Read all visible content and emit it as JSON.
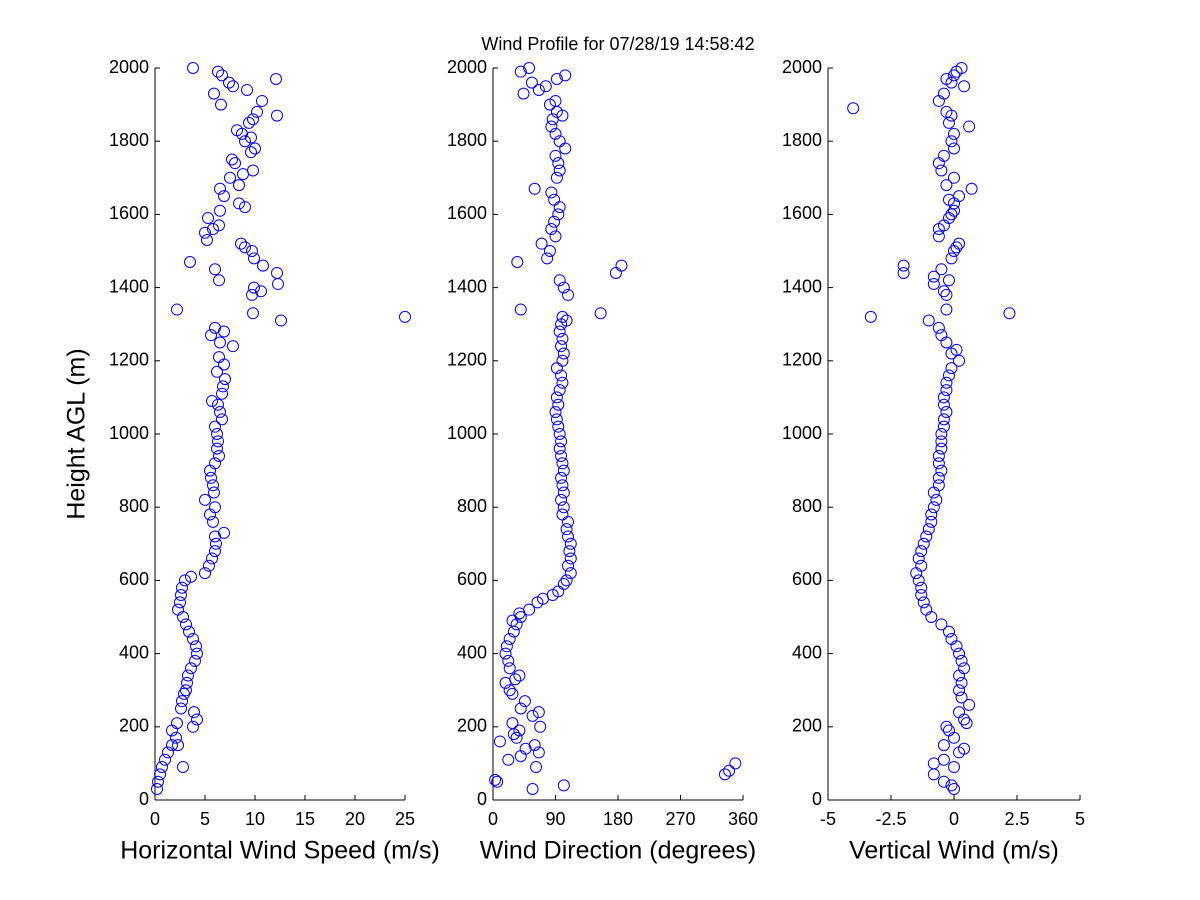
{
  "chart_data": [
    {
      "type": "scatter",
      "xlabel": "Horizontal Wind Speed (m/s)",
      "ylabel": "Height AGL (m)",
      "color": "#0000ff",
      "marker": "circle",
      "xlim": [
        0,
        25
      ],
      "ylim": [
        0,
        2000
      ],
      "xticks": [
        0,
        5,
        10,
        15,
        20,
        25
      ],
      "yticks": [
        0,
        200,
        400,
        600,
        800,
        1000,
        1200,
        1400,
        1600,
        1800,
        2000
      ],
      "x": [
        0.2,
        0.3,
        0.5,
        2.8,
        0.7,
        1.0,
        1.3,
        2.3,
        1.7,
        2.1,
        1.7,
        3.8,
        2.2,
        4.2,
        3.9,
        2.6,
        2.7,
        2.9,
        3.1,
        3.2,
        3.3,
        3.6,
        4.0,
        4.2,
        4.1,
        3.8,
        3.4,
        3.1,
        2.8,
        2.3,
        2.5,
        2.6,
        2.7,
        3.0,
        3.6,
        5.0,
        5.4,
        5.7,
        6.0,
        6.1,
        6.0,
        6.9,
        5.8,
        5.5,
        6.0,
        5.0,
        5.9,
        5.8,
        5.6,
        5.5,
        6.0,
        6.4,
        6.2,
        6.3,
        6.2,
        6.0,
        6.7,
        6.5,
        6.3,
        5.7,
        6.7,
        6.8,
        7.0,
        6.2,
        6.9,
        6.4,
        7.8,
        6.5,
        5.6,
        6.9,
        6.0,
        12.6,
        25.0,
        9.8,
        2.2,
        9.7,
        10.6,
        9.9,
        12.3,
        6.4,
        12.2,
        6.0,
        10.8,
        3.5,
        9.9,
        9.7,
        9.0,
        8.6,
        5.2,
        5.0,
        5.8,
        6.4,
        5.3,
        6.5,
        9.0,
        8.4,
        6.9,
        6.5,
        8.4,
        7.5,
        8.8,
        9.8,
        8.0,
        7.7,
        9.6,
        10.0,
        9.0,
        9.6,
        8.7,
        8.2,
        9.4,
        9.8,
        12.2,
        10.2,
        6.6,
        10.7,
        5.9,
        9.2,
        7.8,
        7.4,
        12.1,
        6.7,
        6.3,
        3.8
      ],
      "y": [
        30,
        50,
        70,
        90,
        90,
        110,
        130,
        150,
        150,
        170,
        190,
        200,
        210,
        220,
        240,
        250,
        270,
        290,
        300,
        320,
        340,
        360,
        380,
        400,
        420,
        440,
        460,
        480,
        500,
        520,
        540,
        560,
        580,
        600,
        610,
        620,
        640,
        660,
        680,
        700,
        720,
        730,
        760,
        780,
        800,
        820,
        840,
        860,
        880,
        900,
        920,
        940,
        960,
        980,
        1000,
        1020,
        1040,
        1060,
        1080,
        1090,
        1110,
        1130,
        1150,
        1170,
        1190,
        1210,
        1240,
        1250,
        1270,
        1280,
        1290,
        1310,
        1320,
        1330,
        1340,
        1380,
        1390,
        1400,
        1410,
        1420,
        1440,
        1450,
        1460,
        1470,
        1480,
        1500,
        1510,
        1520,
        1530,
        1550,
        1560,
        1570,
        1590,
        1610,
        1620,
        1630,
        1650,
        1670,
        1680,
        1700,
        1710,
        1720,
        1740,
        1750,
        1770,
        1780,
        1800,
        1810,
        1820,
        1830,
        1850,
        1860,
        1870,
        1880,
        1900,
        1910,
        1930,
        1940,
        1950,
        1960,
        1970,
        1980,
        1990,
        2000
      ]
    },
    {
      "type": "scatter",
      "title": "Wind Profile for  07/28/19 14:58:42",
      "xlabel": "Wind Direction (degrees)",
      "color": "#0000ff",
      "marker": "circle",
      "xlim": [
        0,
        360
      ],
      "ylim": [
        0,
        2000
      ],
      "xticks": [
        0,
        90,
        180,
        270,
        360
      ],
      "yticks": [
        0,
        200,
        400,
        600,
        800,
        1000,
        1200,
        1400,
        1600,
        1800,
        2000
      ],
      "x": [
        57,
        102,
        6,
        3,
        334,
        340,
        349,
        62,
        22,
        40,
        66,
        47,
        60,
        10,
        34,
        30,
        38,
        68,
        28,
        57,
        66,
        40,
        46,
        28,
        24,
        18,
        32,
        38,
        24,
        22,
        18,
        20,
        24,
        30,
        34,
        28,
        40,
        38,
        52,
        64,
        72,
        86,
        94,
        102,
        106,
        112,
        108,
        112,
        110,
        112,
        108,
        106,
        108,
        100,
        102,
        98,
        102,
        100,
        98,
        102,
        100,
        98,
        96,
        98,
        96,
        94,
        92,
        90,
        94,
        92,
        96,
        100,
        98,
        92,
        100,
        102,
        98,
        100,
        96,
        98,
        106,
        100,
        155,
        40,
        108,
        102,
        96,
        177,
        185,
        35,
        78,
        82,
        70,
        90,
        84,
        88,
        94,
        96,
        88,
        84,
        60,
        92,
        96,
        94,
        90,
        104,
        96,
        90,
        84,
        86,
        100,
        92,
        82,
        90,
        44,
        66,
        76,
        56,
        92,
        104,
        40,
        52
      ],
      "y": [
        30,
        40,
        50,
        55,
        70,
        80,
        100,
        90,
        110,
        120,
        130,
        140,
        150,
        160,
        170,
        180,
        190,
        200,
        210,
        230,
        240,
        250,
        270,
        290,
        300,
        320,
        330,
        340,
        360,
        380,
        400,
        420,
        440,
        460,
        480,
        490,
        500,
        510,
        520,
        540,
        550,
        560,
        570,
        590,
        600,
        620,
        640,
        660,
        680,
        700,
        720,
        740,
        760,
        780,
        800,
        820,
        840,
        860,
        880,
        900,
        920,
        940,
        960,
        980,
        1000,
        1020,
        1040,
        1060,
        1080,
        1100,
        1120,
        1140,
        1160,
        1180,
        1200,
        1220,
        1240,
        1260,
        1280,
        1300,
        1310,
        1320,
        1330,
        1340,
        1380,
        1400,
        1420,
        1440,
        1460,
        1470,
        1480,
        1500,
        1520,
        1540,
        1560,
        1580,
        1600,
        1620,
        1640,
        1660,
        1670,
        1700,
        1720,
        1740,
        1760,
        1780,
        1800,
        1820,
        1840,
        1860,
        1870,
        1880,
        1900,
        1910,
        1930,
        1940,
        1950,
        1960,
        1970,
        1980,
        1990,
        2000
      ]
    },
    {
      "type": "scatter",
      "xlabel": "Vertical Wind (m/s)",
      "color": "#0000ff",
      "marker": "circle",
      "xlim": [
        -5,
        5
      ],
      "ylim": [
        0,
        2000
      ],
      "xticks": [
        -5,
        -2.5,
        0,
        2.5,
        5
      ],
      "yticks": [
        0,
        200,
        400,
        600,
        800,
        1000,
        1200,
        1400,
        1600,
        1800,
        2000
      ],
      "x": [
        0,
        -0.1,
        -0.4,
        -0.8,
        0,
        -0.8,
        -0.4,
        0.2,
        0.4,
        -0.4,
        0,
        -0.2,
        -0.3,
        0.5,
        0.4,
        0.2,
        0.6,
        0.3,
        0.2,
        0.3,
        0.2,
        0.4,
        0.3,
        0.2,
        0.1,
        -0.1,
        -0.2,
        -0.5,
        -0.9,
        -1.1,
        -1.2,
        -1.3,
        -1.3,
        -1.4,
        -1.5,
        -1.3,
        -1.4,
        -1.3,
        -1.2,
        -1.1,
        -1.0,
        -0.9,
        -0.9,
        -0.8,
        -0.7,
        -0.8,
        -0.6,
        -0.6,
        -0.5,
        -0.6,
        -0.6,
        -0.5,
        -0.5,
        -0.5,
        -0.4,
        -0.4,
        -0.3,
        -0.4,
        -0.4,
        -0.3,
        -0.3,
        -0.2,
        -0.1,
        0.2,
        -0.1,
        0.1,
        -0.3,
        -0.5,
        -0.6,
        -1.0,
        -3.3,
        2.2,
        -0.3,
        -0.3,
        -0.4,
        -0.8,
        -0.2,
        -0.8,
        -2.0,
        -0.5,
        -2.0,
        -0.1,
        0,
        0.1,
        0.2,
        -0.6,
        -0.6,
        -0.4,
        -0.2,
        -0.1,
        0,
        0,
        -0.2,
        0.2,
        0.7,
        -0.3,
        0,
        -0.5,
        -0.6,
        -0.4,
        0,
        -0.1,
        0,
        0.6,
        -0.2,
        -0.1,
        -0.3,
        -4.0,
        -0.6,
        -0.4,
        0.4,
        -0.1,
        -0.3,
        0,
        0.1,
        0.3
      ],
      "y": [
        30,
        40,
        50,
        70,
        90,
        100,
        110,
        130,
        140,
        150,
        170,
        190,
        200,
        210,
        220,
        240,
        260,
        280,
        300,
        320,
        340,
        360,
        380,
        400,
        420,
        440,
        460,
        480,
        500,
        520,
        540,
        560,
        580,
        600,
        620,
        640,
        660,
        680,
        700,
        720,
        740,
        760,
        780,
        800,
        820,
        840,
        860,
        880,
        900,
        920,
        940,
        960,
        980,
        1000,
        1020,
        1040,
        1060,
        1080,
        1100,
        1120,
        1140,
        1160,
        1180,
        1200,
        1220,
        1230,
        1250,
        1270,
        1290,
        1310,
        1320,
        1330,
        1340,
        1380,
        1390,
        1410,
        1420,
        1430,
        1440,
        1450,
        1460,
        1480,
        1500,
        1510,
        1520,
        1540,
        1560,
        1570,
        1590,
        1600,
        1610,
        1630,
        1640,
        1650,
        1670,
        1680,
        1700,
        1720,
        1740,
        1760,
        1780,
        1800,
        1820,
        1840,
        1850,
        1870,
        1880,
        1890,
        1910,
        1930,
        1950,
        1960,
        1970,
        1980,
        1990,
        2000
      ]
    }
  ]
}
